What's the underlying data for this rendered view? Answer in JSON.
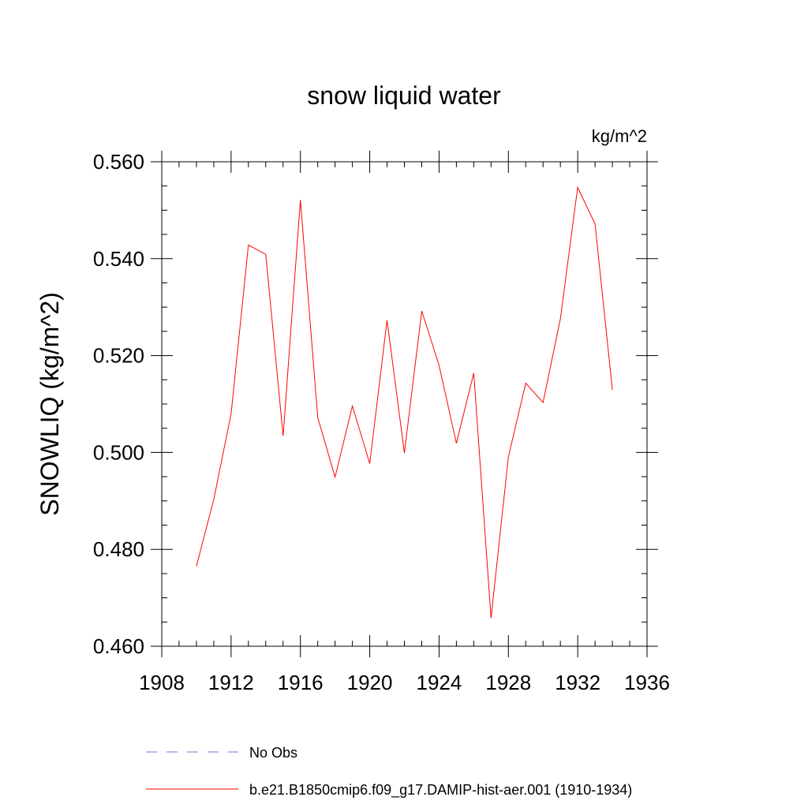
{
  "chart_data": {
    "type": "line",
    "title": "snow liquid water",
    "units": "kg/m^2",
    "ylabel": "SNOWLIQ  (kg/m^2)",
    "xlabel": "",
    "xlim": [
      1908,
      1936
    ],
    "ylim": [
      0.46,
      0.56
    ],
    "x_ticks": [
      1908,
      1912,
      1916,
      1920,
      1924,
      1928,
      1932,
      1936
    ],
    "x_tick_labels": [
      "1908",
      "1912",
      "1916",
      "1920",
      "1924",
      "1928",
      "1932",
      "1936"
    ],
    "y_ticks": [
      0.46,
      0.48,
      0.5,
      0.52,
      0.54,
      0.56
    ],
    "y_tick_labels": [
      "0.460",
      "0.480",
      "0.500",
      "0.520",
      "0.540",
      "0.560"
    ],
    "grid": false,
    "legend_position": "bottom",
    "legend": [
      {
        "label": "No Obs",
        "color": "#7b6fd0",
        "style": "dashed"
      },
      {
        "label": "b.e21.B1850cmip6.f09_g17.DAMIP-hist-aer.001 (1910-1934)",
        "color": "#ff0000",
        "style": "solid"
      }
    ],
    "series": [
      {
        "name": "b.e21.B1850cmip6.f09_g17.DAMIP-hist-aer.001 (1910-1934)",
        "color": "#ff0000",
        "x": [
          1910,
          1911,
          1912,
          1913,
          1914,
          1915,
          1916,
          1917,
          1918,
          1919,
          1920,
          1921,
          1922,
          1923,
          1924,
          1925,
          1926,
          1927,
          1928,
          1929,
          1930,
          1931,
          1932,
          1933,
          1934
        ],
        "y": [
          0.4765,
          0.4903,
          0.508,
          0.5428,
          0.5409,
          0.5034,
          0.5521,
          0.5072,
          0.4949,
          0.5096,
          0.4977,
          0.5273,
          0.4999,
          0.5292,
          0.518,
          0.5019,
          0.5164,
          0.4658,
          0.4991,
          0.5143,
          0.5103,
          0.5276,
          0.5547,
          0.5472,
          0.5129
        ]
      }
    ]
  }
}
